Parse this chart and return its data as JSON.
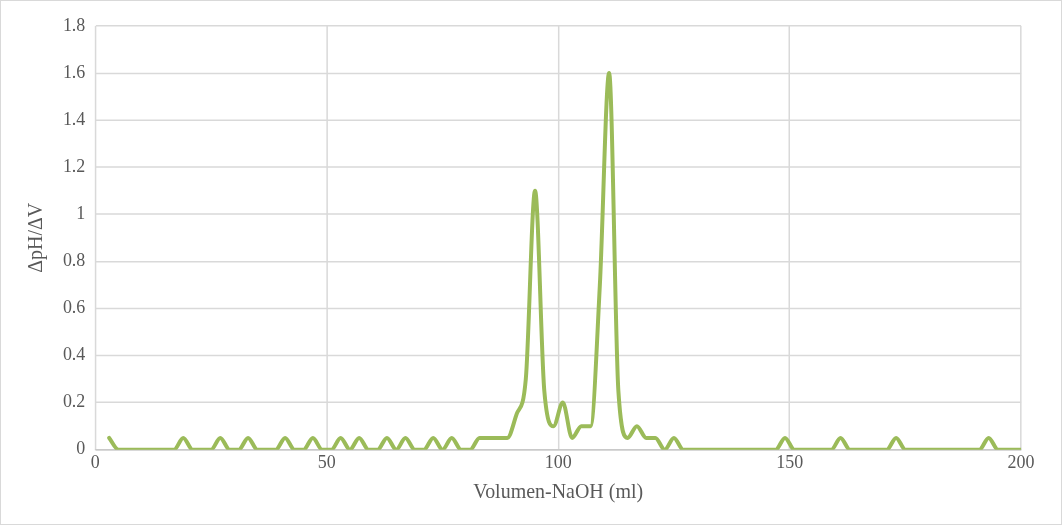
{
  "chart_data": {
    "type": "line",
    "xlabel": "Volumen-NaOH (ml)",
    "ylabel": "ΔpH/ΔV",
    "x": [
      3,
      5,
      17,
      19,
      21,
      25,
      27,
      29,
      31,
      33,
      35,
      39,
      41,
      43,
      45,
      47,
      49,
      51,
      53,
      55,
      57,
      59,
      61,
      63,
      65,
      67,
      69,
      71,
      73,
      75,
      77,
      79,
      81,
      83,
      85,
      87,
      89,
      91,
      93,
      95,
      97,
      99,
      101,
      103,
      105,
      107,
      109,
      111,
      113,
      115,
      117,
      119,
      121,
      123,
      125,
      127,
      147,
      149,
      151,
      159,
      161,
      163,
      171,
      173,
      175,
      191,
      193,
      195,
      200
    ],
    "series": [
      {
        "color": "#9bbb59",
        "values": [
          0.05,
          0,
          0,
          0.05,
          0,
          0,
          0.05,
          0,
          0,
          0.05,
          0,
          0,
          0.05,
          0,
          0,
          0.05,
          0,
          0,
          0.05,
          0,
          0.05,
          0,
          0,
          0.05,
          0,
          0.05,
          0,
          0,
          0.05,
          0,
          0.05,
          0,
          0,
          0.05,
          0.05,
          0.05,
          0.05,
          0.15,
          0.3,
          1.1,
          0.25,
          0.1,
          0.2,
          0.05,
          0.1,
          0.1,
          0.7,
          1.6,
          0.25,
          0.05,
          0.1,
          0.05,
          0.05,
          0,
          0.05,
          0,
          0,
          0.05,
          0,
          0,
          0.05,
          0,
          0,
          0.05,
          0,
          0,
          0.05,
          0,
          0
        ]
      }
    ],
    "xlim": [
      0,
      200
    ],
    "xticks": [
      0,
      50,
      100,
      150,
      200
    ],
    "ylim": [
      0,
      1.8
    ],
    "yticks": [
      0,
      0.2,
      0.4,
      0.6,
      0.8,
      1,
      1.2,
      1.4,
      1.6,
      1.8
    ],
    "grid": true,
    "legend": false,
    "marker": "none",
    "line_style": "solid"
  }
}
